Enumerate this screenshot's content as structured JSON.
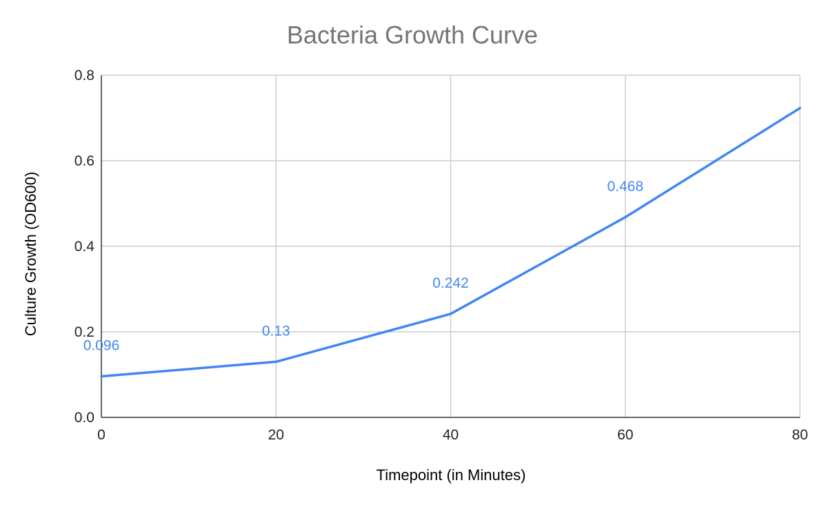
{
  "chart_data": {
    "type": "line",
    "title": "Bacteria Growth Curve",
    "xlabel": "Timepoint (in Minutes)",
    "ylabel": "Culture Growth (OD600)",
    "xlim": [
      0,
      80
    ],
    "ylim": [
      0,
      0.8
    ],
    "x_ticks": [
      0,
      20,
      40,
      60,
      80
    ],
    "x_tick_labels": [
      "0",
      "20",
      "40",
      "60",
      "80"
    ],
    "y_ticks": [
      0,
      0.2,
      0.4,
      0.6,
      0.8
    ],
    "y_tick_labels": [
      "0.0",
      "0.2",
      "0.4",
      "0.6",
      "0.8"
    ],
    "grid": true,
    "legend": "none",
    "series": [
      {
        "name": "Culture Growth (OD600)",
        "color": "#4285f4",
        "x": [
          0,
          20,
          40,
          60,
          80
        ],
        "values": [
          0.096,
          0.13,
          0.242,
          0.468,
          0.723
        ],
        "data_labels": [
          "0.096",
          "0.13",
          "0.242",
          "0.468",
          null
        ]
      }
    ]
  }
}
